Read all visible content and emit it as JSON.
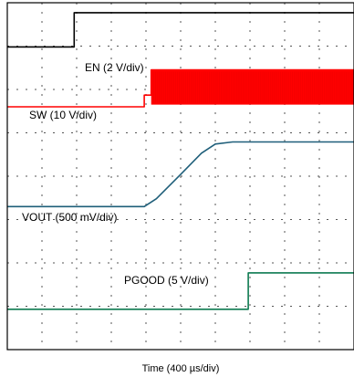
{
  "chart_data": {
    "type": "line",
    "grid": true,
    "grid_divisions": {
      "x": 10,
      "y": 8
    },
    "xlabel": "Time (400 µs/div)",
    "x_unit": "div",
    "xlim": [
      0,
      10
    ],
    "ylim": [
      0,
      8
    ],
    "y_unit": "div",
    "series": [
      {
        "name": "EN (2 V/div)",
        "color": "#000000",
        "points": [
          [
            0,
            6.98
          ],
          [
            1.93,
            6.98
          ],
          [
            1.93,
            7.77
          ],
          [
            10,
            7.77
          ]
        ]
      },
      {
        "name": "SW (10 V/div)",
        "color": "#ff0000",
        "style": "switching",
        "points": [
          [
            0,
            5.6
          ],
          [
            3.95,
            5.6
          ],
          [
            3.95,
            5.87
          ],
          [
            4.15,
            5.87
          ],
          [
            4.15,
            6.45
          ],
          [
            10,
            6.45
          ]
        ],
        "switching_band": {
          "x_start": 4.15,
          "x_end": 10,
          "low": 5.65,
          "high": 6.45
        }
      },
      {
        "name": "VOUT (500 mV/div)",
        "color": "#1f5f7a",
        "points": [
          [
            0,
            3.3
          ],
          [
            3.95,
            3.3
          ],
          [
            4.3,
            3.48
          ],
          [
            5.0,
            4.04
          ],
          [
            5.6,
            4.53
          ],
          [
            6.0,
            4.74
          ],
          [
            6.5,
            4.79
          ],
          [
            10,
            4.79
          ]
        ]
      },
      {
        "name": "PGOOD (5 V/div)",
        "color": "#0d7a50",
        "points": [
          [
            0,
            0.93
          ],
          [
            6.95,
            0.93
          ],
          [
            6.95,
            1.77
          ],
          [
            10,
            1.77
          ]
        ]
      }
    ]
  }
}
